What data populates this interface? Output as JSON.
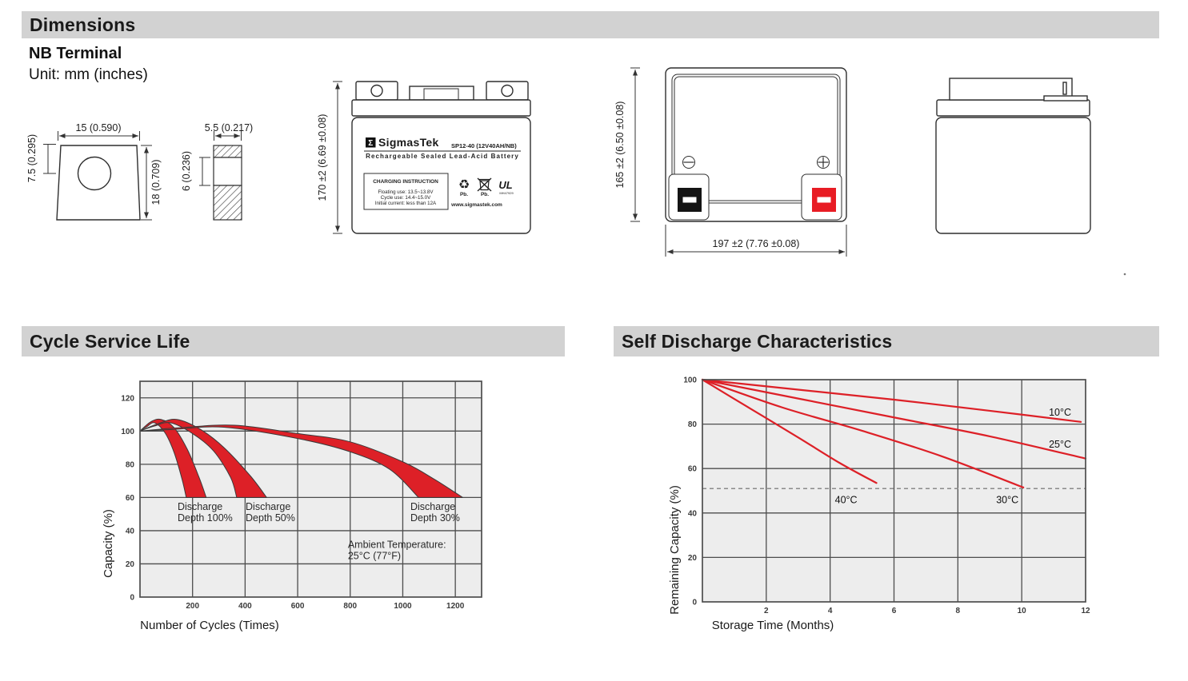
{
  "headers": {
    "dimensions": "Dimensions",
    "cycle": "Cycle Service Life",
    "self_discharge": "Self Discharge Characteristics"
  },
  "nb": {
    "title": "NB Terminal",
    "unit": "Unit: mm (inches)"
  },
  "dims": {
    "term_front_width": "15 (0.590)",
    "term_front_hole": "7.5 (0.295)",
    "term_front_height": "18 (0.709)",
    "term_side_width": "5.5 (0.217)",
    "term_side_mid": "6 (0.236)",
    "batt_front_height": "170 ±2 (6.69 ±0.08)",
    "batt_top_height": "165 ±2 (6.50 ±0.08)",
    "batt_top_width": "197 ±2 (7.76 ±0.08)"
  },
  "label": {
    "sigma": "Σ",
    "brand": "SigmasTek",
    "model": "SP12-40 (12V40AH/NB)",
    "subtitle": "Rechargeable Sealed Lead-Acid Battery",
    "charging_title": "CHARGING INSTRUCTION",
    "charging_lines": [
      "Floating use: 13.5~13.8V",
      "Cycle use: 14.4~15.0V",
      "Initial current: less than 12A"
    ],
    "recycle_symbol": "♻",
    "pb_recycle": "Pb.",
    "pb_bin": "Pb.",
    "ul_mark": "UL",
    "ul_code": "MH47929",
    "website": "www.sigmastek.com"
  },
  "chart_data": [
    {
      "id": "cycle-life",
      "type": "area",
      "title": "Cycle Service Life",
      "xlabel": "Number of Cycles (Times)",
      "ylabel": "Capacity (%)",
      "xlim": [
        0,
        1300
      ],
      "ylim": [
        0,
        130
      ],
      "xticks": [
        200,
        400,
        600,
        800,
        1000,
        1200
      ],
      "yticks": [
        0,
        20,
        40,
        60,
        80,
        100,
        120
      ],
      "grid": true,
      "bands": [
        {
          "name": "Discharge Depth 100%",
          "outer": [
            [
              0,
              100
            ],
            [
              40,
              105.5
            ],
            [
              80,
              107
            ],
            [
              130,
              102
            ],
            [
              180,
              89
            ],
            [
              225,
              72
            ],
            [
              252,
              60
            ]
          ],
          "inner": [
            [
              0,
              100
            ],
            [
              25,
              102.5
            ],
            [
              55,
              105
            ],
            [
              95,
              99
            ],
            [
              130,
              87
            ],
            [
              160,
              71
            ],
            [
              176,
              60
            ]
          ]
        },
        {
          "name": "Discharge Depth 50%",
          "outer": [
            [
              0,
              100
            ],
            [
              70,
              104.5
            ],
            [
              140,
              107
            ],
            [
              230,
              101
            ],
            [
              320,
              90
            ],
            [
              420,
              73
            ],
            [
              482,
              60
            ]
          ],
          "inner": [
            [
              0,
              100
            ],
            [
              55,
              103
            ],
            [
              115,
              105
            ],
            [
              200,
              98.5
            ],
            [
              280,
              88
            ],
            [
              345,
              72
            ],
            [
              368,
              60
            ]
          ]
        },
        {
          "name": "Discharge Depth 30%",
          "outer": [
            [
              0,
              100
            ],
            [
              150,
              102
            ],
            [
              360,
              103.5
            ],
            [
              600,
              98.5
            ],
            [
              800,
              93.5
            ],
            [
              1000,
              81.5
            ],
            [
              1120,
              71
            ],
            [
              1228,
              60
            ]
          ],
          "inner": [
            [
              0,
              100
            ],
            [
              130,
              101
            ],
            [
              320,
              102.3
            ],
            [
              600,
              95.5
            ],
            [
              800,
              87.5
            ],
            [
              950,
              77
            ],
            [
              1060,
              60
            ]
          ]
        }
      ],
      "annotations": [
        {
          "lines": [
            "Discharge",
            "Depth 100%"
          ],
          "x": 143,
          "y": 52.5
        },
        {
          "lines": [
            "Discharge",
            "Depth 50%"
          ],
          "x": 402,
          "y": 52.5
        },
        {
          "lines": [
            "Discharge",
            "Depth 30%"
          ],
          "x": 1029,
          "y": 52.5
        },
        {
          "lines": [
            "Ambient Temperature:",
            "25°C (77°F)"
          ],
          "x": 791,
          "y": 29.5
        }
      ]
    },
    {
      "id": "self-discharge",
      "type": "line",
      "title": "Self Discharge Characteristics",
      "xlabel": "Storage Time (Months)",
      "ylabel": "Remaining Capacity (%)",
      "xlim": [
        0,
        12
      ],
      "ylim": [
        0,
        100
      ],
      "xticks": [
        2,
        4,
        6,
        8,
        10,
        12
      ],
      "yticks": [
        0,
        20,
        40,
        60,
        80,
        100
      ],
      "grid": true,
      "dashed_line_y": 51,
      "series": [
        {
          "name": "10°C",
          "points": [
            [
              0,
              100
            ],
            [
              3,
              95.5
            ],
            [
              6,
              91
            ],
            [
              9,
              86
            ],
            [
              11.85,
              81
            ]
          ]
        },
        {
          "name": "25°C",
          "points": [
            [
              0,
              100
            ],
            [
              3,
              91.5
            ],
            [
              6,
              83
            ],
            [
              9,
              74.5
            ],
            [
              12,
              64.5
            ]
          ]
        },
        {
          "name": "30°C",
          "points": [
            [
              0,
              100
            ],
            [
              2.5,
              87.5
            ],
            [
              5,
              77
            ],
            [
              7.5,
              65.5
            ],
            [
              10.05,
              51.5
            ]
          ]
        },
        {
          "name": "40°C",
          "points": [
            [
              0,
              100
            ],
            [
              1.5,
              87
            ],
            [
              3,
              74
            ],
            [
              4.3,
              62.5
            ],
            [
              5.45,
              53.5
            ]
          ]
        }
      ],
      "series_labels": [
        {
          "text": "10°C",
          "x": 10.85,
          "y": 83.8
        },
        {
          "text": "25°C",
          "x": 10.85,
          "y": 69.5
        },
        {
          "text": "30°C",
          "x": 9.2,
          "y": 44.5
        },
        {
          "text": "40°C",
          "x": 4.15,
          "y": 44.5
        }
      ]
    }
  ],
  "colors": {
    "red": "#dd2027",
    "terminal_red": "#e81c24",
    "terminal_black": "#141414",
    "plot_bg": "#ededed",
    "grid": "#4d4d4d",
    "bar_bg": "#d2d2d2",
    "dash": "#8a8a8a"
  }
}
